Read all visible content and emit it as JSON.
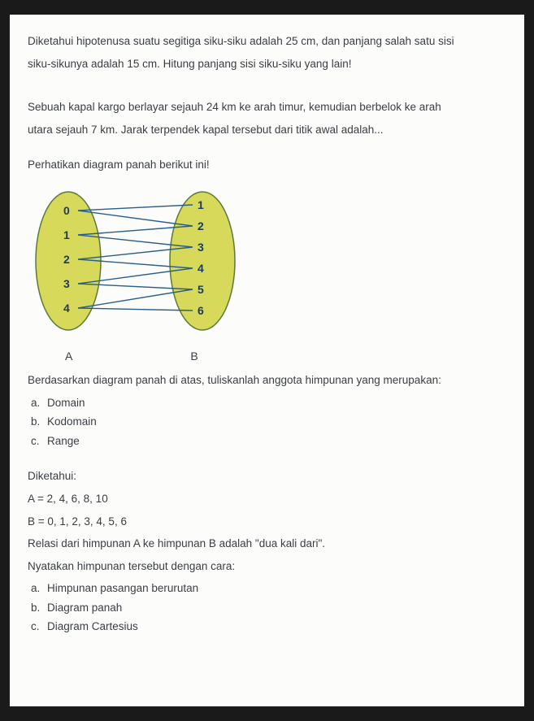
{
  "p1": {
    "l1": "Diketahui hipotenusa suatu segitiga siku-siku adalah 25 cm, dan panjang salah satu sisi",
    "l2": "siku-sikunya adalah 15 cm. Hitung panjang sisi siku-siku yang lain!"
  },
  "p2": {
    "l1": "Sebuah kapal kargo berlayar sejauh 24 km ke arah timur, kemudian berbelok ke arah",
    "l2": "utara sejauh 7 km. Jarak terpendek kapal tersebut dari titik awal adalah..."
  },
  "p3": {
    "intro": "Perhatikan diagram panah berikut ini!",
    "diagram": {
      "setA": {
        "label": "A",
        "items": [
          "0",
          "1",
          "2",
          "3",
          "4"
        ]
      },
      "setB": {
        "label": "B",
        "items": [
          "1",
          "2",
          "3",
          "4",
          "5",
          "6"
        ]
      },
      "ellipse_fill": "#d6d95a",
      "ellipse_stroke": "#5a7a3a",
      "line_stroke": "#2b5e8a",
      "text_color": "#1e3a5a",
      "mappings": [
        {
          "a": 0,
          "b": 0
        },
        {
          "a": 0,
          "b": 1
        },
        {
          "a": 1,
          "b": 1
        },
        {
          "a": 1,
          "b": 2
        },
        {
          "a": 2,
          "b": 2
        },
        {
          "a": 2,
          "b": 3
        },
        {
          "a": 3,
          "b": 3
        },
        {
          "a": 3,
          "b": 4
        },
        {
          "a": 4,
          "b": 4
        },
        {
          "a": 4,
          "b": 5
        }
      ]
    },
    "after": "Berdasarkan diagram panah di atas, tuliskanlah anggota himpunan yang merupakan:",
    "a": "Domain",
    "b": "Kodomain",
    "c": "Range"
  },
  "p4": {
    "l1": "Diketahui:",
    "l2": "A = 2, 4, 6, 8, 10",
    "l3": "B = 0, 1, 2, 3, 4, 5, 6",
    "l4": "Relasi dari himpunan A ke himpunan B adalah \"dua kali dari\".",
    "l5": "Nyatakan himpunan tersebut dengan cara:",
    "a": "Himpunan pasangan berurutan",
    "b": "Diagram panah",
    "c": "Diagram Cartesius"
  },
  "markers": {
    "a": "a.",
    "b": "b.",
    "c": "c."
  }
}
